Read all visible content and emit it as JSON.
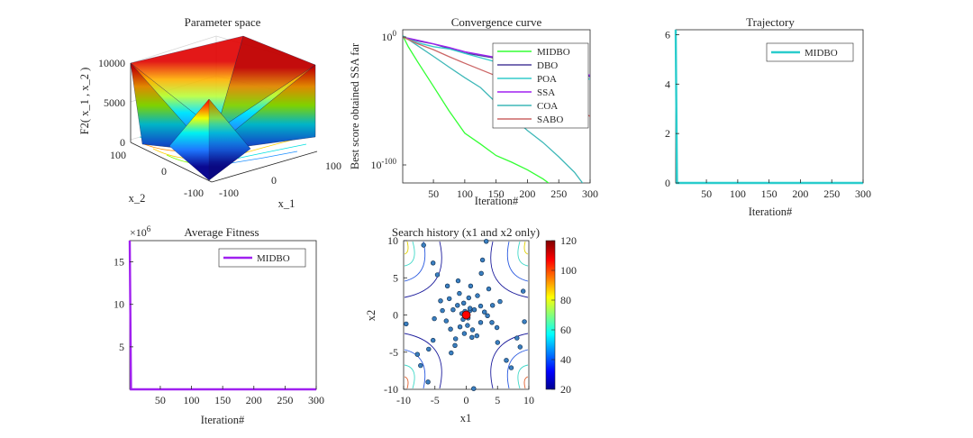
{
  "chart_data": [
    {
      "type": "surface",
      "title": "Parameter space",
      "xlabel": "x_1",
      "ylabel": "x_2",
      "zlabel": "F2( x_1 , x_2 )",
      "xlim": [
        -100,
        100
      ],
      "ylim": [
        -100,
        100
      ],
      "zlim": [
        0,
        10000
      ],
      "x_ticks": [
        "-100",
        "0",
        "100"
      ],
      "y_ticks": [
        "-100",
        "0",
        "100"
      ],
      "z_ticks": [
        "0",
        "5000",
        "10000"
      ],
      "colormap": "jet"
    },
    {
      "type": "line",
      "title": "Convergence curve",
      "xlabel": "Iteration#",
      "ylabel": "Best score obtained SSA far",
      "y_scale": "log",
      "xlim": [
        1,
        300
      ],
      "x_ticks": [
        "50",
        "100",
        "150",
        "200",
        "250",
        "300"
      ],
      "y_ticks": [
        "10^0",
        "10^-100"
      ],
      "legend_position": "top-right",
      "series": [
        {
          "name": "MIDBO",
          "color": "#33ff33",
          "x": [
            1,
            10,
            25,
            50,
            75,
            100,
            125,
            150,
            175,
            200,
            225,
            250
          ],
          "log10_y": [
            1,
            -8,
            -20,
            -38,
            -58,
            -75,
            -84,
            -92,
            -98,
            -104,
            -111,
            -120
          ]
        },
        {
          "name": "DBO",
          "color": "#4b3f9c",
          "x": [
            1,
            25,
            50,
            75,
            100,
            150,
            200,
            250,
            300
          ],
          "log10_y": [
            0,
            -3,
            -6,
            -9,
            -12,
            -17,
            -22,
            -27,
            -31
          ]
        },
        {
          "name": "POA",
          "color": "#33cccc",
          "x": [
            1,
            25,
            50,
            75,
            100,
            150,
            200,
            250,
            300
          ],
          "log10_y": [
            0,
            -4,
            -7,
            -10,
            -13,
            -19,
            -24,
            -29,
            -33
          ]
        },
        {
          "name": "SSA",
          "color": "#a020f0",
          "x": [
            1,
            25,
            50,
            75,
            100,
            150,
            200,
            250,
            300
          ],
          "log10_y": [
            0,
            -3,
            -5,
            -8,
            -11,
            -16,
            -21,
            -25,
            -30
          ]
        },
        {
          "name": "COA",
          "color": "#3eb8b8",
          "x": [
            1,
            25,
            50,
            75,
            100,
            125,
            150,
            175,
            200,
            225,
            250,
            275,
            300
          ],
          "log10_y": [
            1,
            -7,
            -15,
            -24,
            -32,
            -40,
            -52,
            -62,
            -73,
            -82,
            -93,
            -106,
            -122
          ]
        },
        {
          "name": "SABO",
          "color": "#cc6666",
          "x": [
            1,
            25,
            50,
            75,
            100,
            150,
            200,
            250,
            300
          ],
          "log10_y": [
            0,
            -5,
            -10,
            -15,
            -20,
            -30,
            -40,
            -50,
            -62
          ]
        }
      ]
    },
    {
      "type": "line",
      "title": "Trajectory",
      "xlabel": "Iteration#",
      "ylabel": "",
      "xlim": [
        1,
        300
      ],
      "ylim": [
        0,
        6.2
      ],
      "x_ticks": [
        "50",
        "100",
        "150",
        "200",
        "250",
        "300"
      ],
      "y_ticks": [
        "0",
        "2",
        "4",
        "6"
      ],
      "legend_position": "top-right",
      "series": [
        {
          "name": "MIDBO",
          "color": "#29cccc",
          "x": [
            1,
            3,
            300
          ],
          "y": [
            6.2,
            0,
            0
          ]
        }
      ]
    },
    {
      "type": "line",
      "title": "Average Fitness",
      "xlabel": "Iteration#",
      "ylabel": "",
      "y_exponent": "×10^6",
      "xlim": [
        1,
        300
      ],
      "ylim": [
        0,
        17.5
      ],
      "x_ticks": [
        "50",
        "100",
        "150",
        "200",
        "250",
        "300"
      ],
      "y_ticks": [
        "5",
        "10",
        "15"
      ],
      "legend_position": "top-right",
      "series": [
        {
          "name": "MIDBO",
          "color": "#a020f0",
          "x": [
            1,
            3,
            300
          ],
          "y": [
            17.5,
            0,
            0
          ]
        }
      ]
    },
    {
      "type": "scatter",
      "title": "Search history (x1 and x2 only)",
      "xlabel": "x1",
      "ylabel": "x2",
      "xlim": [
        -10,
        10
      ],
      "ylim": [
        -10,
        10
      ],
      "x_ticks": [
        "-10",
        "-5",
        "0",
        "5",
        "10"
      ],
      "y_ticks": [
        "-10",
        "-5",
        "0",
        "5",
        "10"
      ],
      "colorbar": {
        "min": 20,
        "max": 120,
        "ticks": [
          "20",
          "40",
          "60",
          "80",
          "100",
          "120"
        ],
        "colormap": "jet"
      },
      "contour_levels": [
        20,
        40,
        60,
        80,
        100,
        120
      ],
      "best_point": {
        "x": 0,
        "y": 0,
        "color": "#ff0000"
      },
      "points": [
        [
          -6.8,
          9.4
        ],
        [
          3.2,
          9.9
        ],
        [
          -2.7,
          2.2
        ],
        [
          -3.8,
          0.6
        ],
        [
          -5.1,
          -0.5
        ],
        [
          -2.1,
          0.7
        ],
        [
          -1.4,
          1.3
        ],
        [
          -0.4,
          1.6
        ],
        [
          0.6,
          0.6
        ],
        [
          1.3,
          0.7
        ],
        [
          2.3,
          1.2
        ],
        [
          2.9,
          0.4
        ],
        [
          3.4,
          -0.1
        ],
        [
          4.1,
          -1.0
        ],
        [
          4.9,
          -1.7
        ],
        [
          9.3,
          -0.9
        ],
        [
          8.1,
          -3.1
        ],
        [
          -5.3,
          -3.4
        ],
        [
          -6.0,
          -4.6
        ],
        [
          -2.4,
          -5.1
        ],
        [
          -1.8,
          -4.1
        ],
        [
          -1.0,
          -1.6
        ],
        [
          0.2,
          -1.4
        ],
        [
          0.9,
          -3.0
        ],
        [
          1.7,
          -2.8
        ],
        [
          5.0,
          -3.7
        ],
        [
          7.2,
          -7.1
        ],
        [
          1.2,
          -9.9
        ],
        [
          -7.3,
          -6.8
        ],
        [
          -6.1,
          -9.0
        ],
        [
          -1.7,
          -3.2
        ],
        [
          -4.1,
          1.9
        ],
        [
          2.4,
          5.6
        ],
        [
          3.6,
          3.5
        ],
        [
          2.6,
          7.4
        ],
        [
          -1.3,
          4.6
        ],
        [
          0.4,
          2.3
        ],
        [
          1.8,
          2.6
        ],
        [
          -0.5,
          -0.6
        ],
        [
          0.3,
          -0.4
        ],
        [
          -0.7,
          0.2
        ],
        [
          0.6,
          0.9
        ],
        [
          -0.2,
          0.5
        ],
        [
          4.2,
          1.3
        ],
        [
          -4.6,
          5.4
        ],
        [
          -5.3,
          7.0
        ],
        [
          -3.0,
          3.9
        ],
        [
          -9.6,
          -1.2
        ],
        [
          -7.8,
          -5.3
        ],
        [
          9.1,
          3.2
        ],
        [
          5.4,
          1.8
        ],
        [
          -2.5,
          -1.9
        ],
        [
          1.0,
          -2.0
        ],
        [
          -1.1,
          2.9
        ],
        [
          6.4,
          -6.1
        ],
        [
          8.6,
          -4.3
        ],
        [
          2.3,
          -1.0
        ],
        [
          -3.2,
          -0.8
        ],
        [
          0.7,
          3.9
        ],
        [
          -0.3,
          -2.5
        ]
      ]
    }
  ]
}
